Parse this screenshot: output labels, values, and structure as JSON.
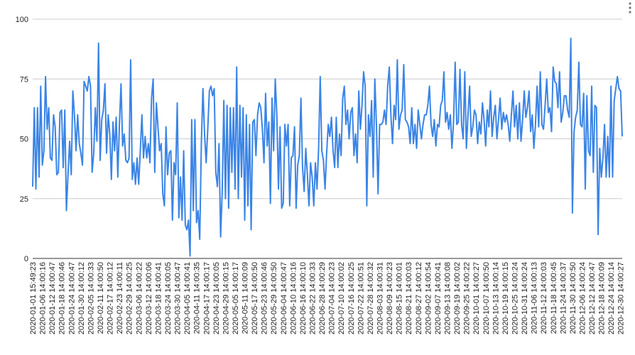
{
  "chart_data": {
    "type": "line",
    "categories": [
      "2020-01-01 15:49:23",
      null,
      null,
      null,
      null,
      null,
      "2020-01-06 14:00:16",
      null,
      null,
      null,
      null,
      null,
      "2020-01-12 14:00:47",
      null,
      null,
      null,
      null,
      null,
      "2020-01-18 14:00:46",
      null,
      null,
      null,
      null,
      null,
      "2020-01-24 14:00:47",
      null,
      null,
      null,
      null,
      null,
      "2020-01-30 14:00:12",
      null,
      null,
      null,
      null,
      null,
      "2020-02-05 14:00:33",
      null,
      null,
      null,
      null,
      null,
      "2020-02-11 14:00:50",
      null,
      null,
      null,
      null,
      null,
      "2020-02-17 14:00:12",
      null,
      null,
      null,
      null,
      null,
      "2020-02-23 14:00:11",
      null,
      null,
      null,
      null,
      null,
      "2020-02-29 14:00:25",
      null,
      null,
      null,
      null,
      null,
      "2020-03-06 14:00:22",
      null,
      null,
      null,
      null,
      null,
      "2020-03-12 14:00:06",
      null,
      null,
      null,
      null,
      null,
      "2020-03-18 14:00:41",
      null,
      null,
      null,
      null,
      null,
      "2020-03-24 14:00:05",
      null,
      null,
      null,
      null,
      null,
      "2020-03-30 14:00:47",
      null,
      null,
      null,
      null,
      null,
      "2020-04-05 14:00:41",
      null,
      null,
      null,
      null,
      null,
      "2020-04-11 14:00:35",
      null,
      null,
      null,
      null,
      null,
      "2020-04-17 14:00:17",
      null,
      null,
      null,
      null,
      null,
      "2020-04-23 14:00:05",
      null,
      null,
      null,
      null,
      null,
      "2020-04-29 14:00:15",
      null,
      null,
      null,
      null,
      null,
      "2020-05-05 14:00:17",
      null,
      null,
      null,
      null,
      null,
      "2020-05-11 14:00:09",
      null,
      null,
      null,
      null,
      null,
      "2020-05-17 14:00:50",
      null,
      null,
      null,
      null,
      null,
      "2020-05-23 14:00:46",
      null,
      null,
      null,
      null,
      null,
      "2020-05-29 14:00:50",
      null,
      null,
      null,
      null,
      null,
      "2020-06-04 14:00:47",
      null,
      null,
      null,
      null,
      null,
      "2020-06-10 14:00:16",
      null,
      null,
      null,
      null,
      null,
      "2020-06-16 14:00:10",
      null,
      null,
      null,
      null,
      null,
      "2020-06-22 14:00:33",
      null,
      null,
      null,
      null,
      null,
      "2020-06-28 14:00:29",
      null,
      null,
      null,
      null,
      null,
      "2020-07-04 14:00:23",
      null,
      null,
      null,
      null,
      null,
      "2020-07-10 14:00:02",
      null,
      null,
      null,
      null,
      null,
      "2020-07-16 14:00:25",
      null,
      null,
      null,
      null,
      null,
      "2020-07-22 14:00:51",
      null,
      null,
      null,
      null,
      null,
      "2020-07-28 14:00:32",
      null,
      null,
      null,
      null,
      null,
      "2020-08-03 14:00:31",
      null,
      null,
      null,
      null,
      null,
      "2020-08-09 14:00:23",
      null,
      null,
      null,
      null,
      null,
      "2020-08-15 14:00:01",
      null,
      null,
      null,
      null,
      null,
      "2020-08-21 14:00:03",
      null,
      null,
      null,
      null,
      null,
      "2020-08-27 14:00:12",
      null,
      null,
      null,
      null,
      null,
      "2020-09-02 14:00:54",
      null,
      null,
      null,
      null,
      null,
      "2020-09-07 14:00:41",
      null,
      null,
      null,
      null,
      null,
      "2020-09-13 14:00:08",
      null,
      null,
      null,
      null,
      null,
      "2020-09-19 14:00:02",
      null,
      null,
      null,
      null,
      null,
      "2020-09-25 14:00:22",
      null,
      null,
      null,
      null,
      null,
      "2020-10-01 14:00:27",
      null,
      null,
      null,
      null,
      null,
      "2020-10-07 14:00:50",
      null,
      null,
      null,
      null,
      null,
      "2020-10-13 14:00:14",
      null,
      null,
      null,
      null,
      null,
      "2020-10-19 14:00:15",
      null,
      null,
      null,
      null,
      null,
      "2020-10-25 14:00:24",
      null,
      null,
      null,
      null,
      null,
      "2020-10-31 14:00:24",
      null,
      null,
      null,
      null,
      null,
      "2020-11-06 14:00:13",
      null,
      null,
      null,
      null,
      null,
      "2020-11-12 14:00:03",
      null,
      null,
      null,
      null,
      null,
      "2020-11-18 14:00:45",
      null,
      null,
      null,
      null,
      null,
      "2020-11-24 14:00:37",
      null,
      null,
      null,
      null,
      null,
      "2020-11-30 14:00:50",
      null,
      null,
      null,
      null,
      null,
      "2020-12-06 14:00:24",
      null,
      null,
      null,
      null,
      null,
      "2020-12-12 14:00:47",
      null,
      null,
      null,
      null,
      null,
      "2020-12-18 14:00:09",
      null,
      null,
      null,
      null,
      null,
      "2020-12-24 14:00:14",
      null,
      null,
      null,
      null,
      null,
      "2020-12-30 14:00:27",
      null
    ],
    "values": [
      30,
      63,
      29,
      63,
      34,
      72,
      39,
      45,
      76,
      54,
      63,
      42,
      41,
      60,
      55,
      35,
      36,
      61,
      62,
      38,
      62,
      20,
      35,
      49,
      35,
      70,
      60,
      45,
      60,
      48,
      44,
      39,
      74,
      72,
      70,
      76,
      72,
      36,
      44,
      63,
      49,
      90,
      41,
      58,
      62,
      73,
      44,
      60,
      52,
      33,
      57,
      45,
      59,
      34,
      56,
      73,
      47,
      52,
      41,
      40,
      42,
      83,
      33,
      40,
      31,
      42,
      31,
      45,
      60,
      42,
      51,
      42,
      48,
      40,
      67,
      75,
      36,
      65,
      55,
      45,
      48,
      27,
      22,
      55,
      35,
      44,
      45,
      16,
      40,
      35,
      65,
      17,
      34,
      16,
      45,
      14,
      12,
      16,
      1,
      58,
      20,
      58,
      15,
      20,
      8,
      48,
      71,
      52,
      40,
      54,
      70,
      72,
      68,
      71,
      36,
      30,
      48,
      9,
      28,
      66,
      25,
      64,
      21,
      63,
      36,
      63,
      29,
      80,
      25,
      64,
      34,
      63,
      16,
      60,
      22,
      56,
      12,
      57,
      58,
      43,
      60,
      65,
      63,
      54,
      40,
      69,
      47,
      57,
      23,
      67,
      45,
      75,
      60,
      29,
      55,
      21,
      23,
      56,
      47,
      56,
      22,
      42,
      43,
      55,
      21,
      39,
      43,
      67,
      38,
      28,
      46,
      35,
      22,
      40,
      34,
      22,
      40,
      29,
      46,
      76,
      45,
      41,
      29,
      44,
      56,
      51,
      59,
      45,
      38,
      59,
      38,
      52,
      43,
      67,
      72,
      56,
      62,
      50,
      61,
      63,
      43,
      52,
      40,
      70,
      54,
      64,
      78,
      72,
      22,
      60,
      51,
      66,
      34,
      75,
      56,
      27,
      56,
      56,
      57,
      62,
      56,
      72,
      80,
      60,
      48,
      64,
      58,
      83,
      54,
      60,
      62,
      81,
      58,
      57,
      55,
      48,
      63,
      48,
      56,
      46,
      62,
      56,
      50,
      56,
      60,
      60,
      64,
      72,
      56,
      51,
      58,
      47,
      56,
      55,
      64,
      66,
      78,
      57,
      61,
      54,
      60,
      46,
      57,
      82,
      56,
      57,
      79,
      56,
      50,
      78,
      46,
      60,
      72,
      51,
      55,
      62,
      60,
      48,
      57,
      52,
      65,
      58,
      47,
      62,
      55,
      70,
      51,
      59,
      64,
      50,
      58,
      67,
      54,
      61,
      57,
      60,
      56,
      49,
      60,
      70,
      55,
      64,
      50,
      65,
      49,
      58,
      70,
      59,
      63,
      70,
      53,
      60,
      46,
      56,
      72,
      55,
      78,
      56,
      54,
      64,
      75,
      61,
      63,
      53,
      80,
      74,
      73,
      63,
      78,
      57,
      61,
      68,
      68,
      62,
      59,
      92,
      19,
      53,
      59,
      62,
      82,
      56,
      55,
      69,
      29,
      68,
      45,
      43,
      72,
      36,
      64,
      63,
      10,
      46,
      34,
      42,
      56,
      34,
      51,
      34,
      72,
      34,
      66,
      71,
      76,
      71,
      70,
      51
    ],
    "color": "#3a84e6",
    "ylim": [
      0,
      100
    ],
    "yticks": [
      0,
      25,
      50,
      75,
      100
    ],
    "grid": true
  }
}
